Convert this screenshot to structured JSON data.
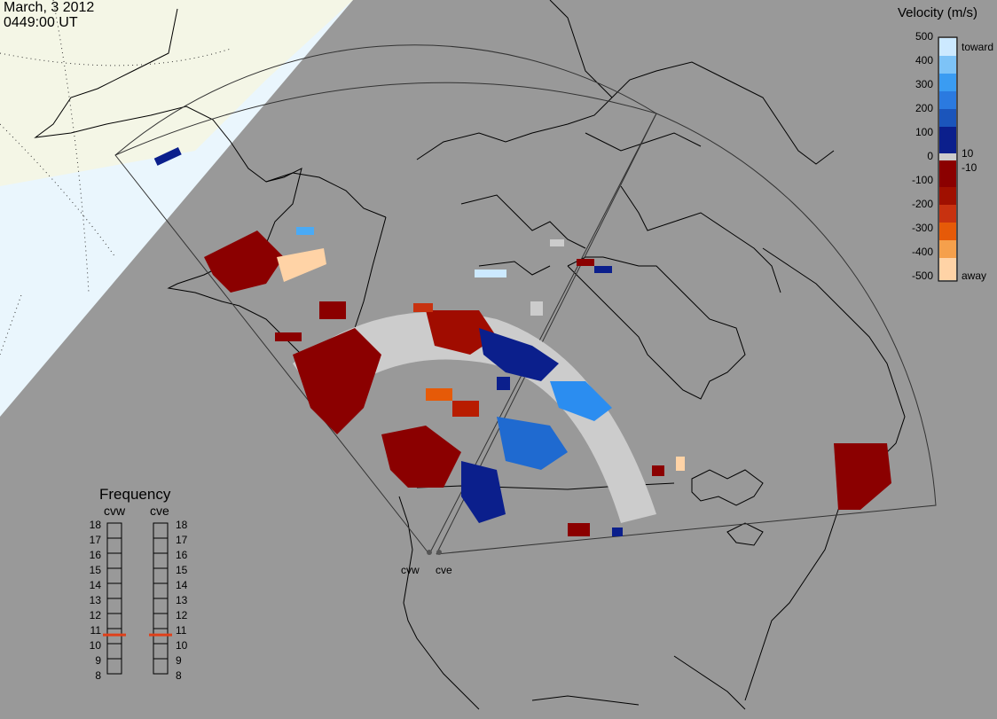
{
  "header": {
    "date": "March, 3 2012",
    "time": "0449:00 UT"
  },
  "legend": {
    "title": "Velocity (m/s)",
    "toward_label": "toward",
    "away_label": "away",
    "ticks": [
      "500",
      "400",
      "300",
      "200",
      "100",
      "0",
      "-100",
      "-200",
      "-300",
      "-400",
      "-500"
    ],
    "threshold_pos": "10",
    "threshold_neg": "-10"
  },
  "frequency_panel": {
    "title": "Frequency",
    "radars": [
      "cvw",
      "cve"
    ],
    "values": [
      "18",
      "17",
      "16",
      "15",
      "14",
      "13",
      "12",
      "11",
      "10",
      "9",
      "8"
    ],
    "current_mhz": [
      10.7,
      10.7
    ],
    "marker_color": "#e0401a"
  },
  "sites": [
    "cvw",
    "cve"
  ],
  "colors": {
    "background": "#999999",
    "daylight": "#f4f6e6",
    "night_sky": "#eaf6fd",
    "scatter_gray": "#cccccc",
    "vel_toward_500": "#cce9ff",
    "vel_toward_300": "#2b8df0",
    "vel_toward_100": "#0b1f8c",
    "vel_away_100": "#8b0000",
    "vel_away_300": "#e65a08",
    "vel_away_500": "#ffd3a6"
  }
}
